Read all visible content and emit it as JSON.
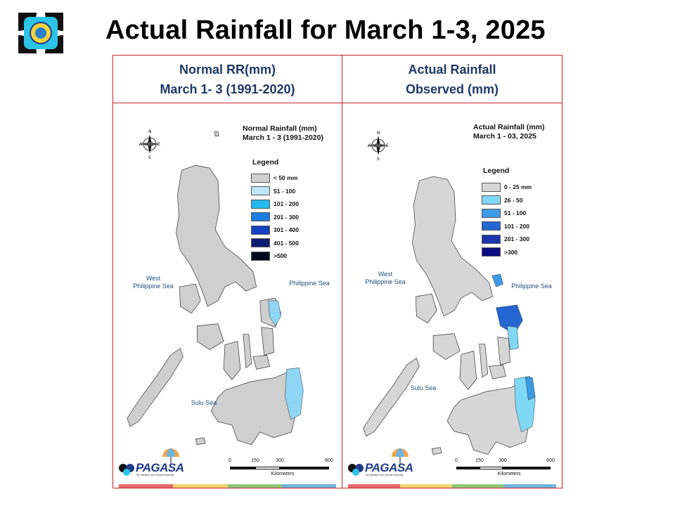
{
  "slide": {
    "title": "Actual Rainfall for March 1-3, 2025"
  },
  "panels": [
    {
      "header_line1": "Normal RR(mm)",
      "header_line2": "March 1- 3 (1991-2020)",
      "map_title_line1": "Normal Rainfall (mm)",
      "map_title_line2": "March 1 - 3  (1991-2020)",
      "legend_title": "Legend",
      "legend": [
        {
          "label": "< 50 mm",
          "color": "#cfcfcf"
        },
        {
          "label": "51 - 100",
          "color": "#bfe7f8"
        },
        {
          "label": "101 - 200",
          "color": "#25b9ee"
        },
        {
          "label": "201 - 300",
          "color": "#1c7ce0"
        },
        {
          "label": "301 - 400",
          "color": "#1440c4"
        },
        {
          "label": "401 - 500",
          "color": "#0c1c72"
        },
        {
          "label": ">500",
          "color": "#030820"
        }
      ],
      "seas": {
        "west": "West\nPhilippine Sea",
        "east": "Philippine Sea",
        "sulu": "Sulu Sea"
      }
    },
    {
      "header_line1": "Actual Rainfall",
      "header_line2": "Observed (mm)",
      "map_title_line1": "Actual Rainfall (mm)",
      "map_title_line2": "March 1 - 03, 2025",
      "legend_title": "Legend",
      "legend": [
        {
          "label": "0 - 25 mm",
          "color": "#d6d6d6"
        },
        {
          "label": "26 - 50",
          "color": "#7fd8f6"
        },
        {
          "label": "51 - 100",
          "color": "#3d9be5"
        },
        {
          "label": "101 - 200",
          "color": "#2466d2"
        },
        {
          "label": "201 - 300",
          "color": "#1a35aa"
        },
        {
          "label": ">300",
          "color": "#0a0e80"
        }
      ],
      "seas": {
        "west": "West\nPhilippine Sea",
        "east": "Philippine Sea",
        "sulu": "Sulu Sea"
      }
    }
  ],
  "compass": {
    "north": "N",
    "south": "S",
    "east": "E",
    "west": "W"
  },
  "branding": {
    "pagasa": "PAGASA",
    "tagline": "The Weather and Climate Authority",
    "dost": "DOST"
  },
  "scale_bar": {
    "ticks": [
      "0",
      "150",
      "300",
      "600"
    ],
    "unit": "Kilometers"
  },
  "colors": {
    "panel_border": "#c0282d",
    "header_text": "#1f3864",
    "land": "#cfcfcf",
    "strip": [
      "#e8686a",
      "#f2d56e",
      "#8cc87a",
      "#6fb4de"
    ]
  }
}
